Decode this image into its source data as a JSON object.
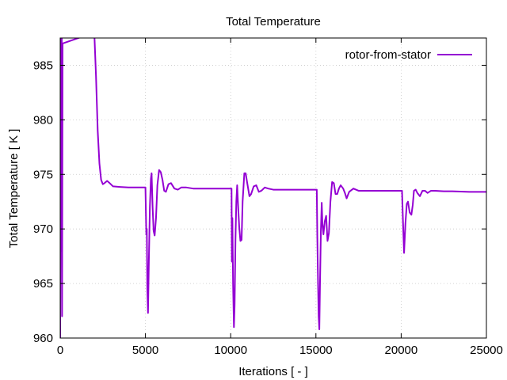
{
  "chart_data": {
    "type": "line",
    "title": "Total Temperature",
    "xlabel": "Iterations [ - ]",
    "ylabel": "Total Temperature [ K ]",
    "xlim": [
      0,
      25000
    ],
    "ylim": [
      960,
      987.5
    ],
    "xticks": [
      0,
      5000,
      10000,
      15000,
      20000,
      25000
    ],
    "yticks": [
      960,
      965,
      970,
      975,
      980,
      985
    ],
    "grid": true,
    "legend_position": "top-right",
    "series": [
      {
        "name": "rotor-from-stator",
        "color": "#9400d3",
        "points": [
          [
            0,
            960
          ],
          [
            40,
            988
          ],
          [
            60,
            968
          ],
          [
            90,
            988
          ],
          [
            110,
            962
          ],
          [
            140,
            987
          ],
          [
            2000,
            988
          ],
          [
            2100,
            984
          ],
          [
            2200,
            979
          ],
          [
            2300,
            976
          ],
          [
            2400,
            974.5
          ],
          [
            2500,
            974.1
          ],
          [
            2600,
            974.2
          ],
          [
            2750,
            974.4
          ],
          [
            2900,
            974.2
          ],
          [
            3100,
            973.9
          ],
          [
            3500,
            973.85
          ],
          [
            4000,
            973.8
          ],
          [
            4500,
            973.8
          ],
          [
            5000,
            973.8
          ],
          [
            5050,
            969.5
          ],
          [
            5080,
            970
          ],
          [
            5110,
            964.5
          ],
          [
            5150,
            962.3
          ],
          [
            5200,
            967
          ],
          [
            5260,
            972
          ],
          [
            5320,
            974.6
          ],
          [
            5360,
            975.1
          ],
          [
            5420,
            972
          ],
          [
            5480,
            969.8
          ],
          [
            5540,
            969.4
          ],
          [
            5620,
            971
          ],
          [
            5700,
            974
          ],
          [
            5800,
            975.4
          ],
          [
            5900,
            975.2
          ],
          [
            6000,
            974.5
          ],
          [
            6100,
            973.5
          ],
          [
            6200,
            973.4
          ],
          [
            6350,
            974.1
          ],
          [
            6500,
            974.2
          ],
          [
            6700,
            973.7
          ],
          [
            6900,
            973.6
          ],
          [
            7100,
            973.8
          ],
          [
            7400,
            973.8
          ],
          [
            7800,
            973.7
          ],
          [
            8500,
            973.7
          ],
          [
            9500,
            973.7
          ],
          [
            10050,
            973.7
          ],
          [
            10070,
            967
          ],
          [
            10100,
            971
          ],
          [
            10140,
            965
          ],
          [
            10190,
            961
          ],
          [
            10230,
            963
          ],
          [
            10280,
            969
          ],
          [
            10330,
            972.5
          ],
          [
            10380,
            974
          ],
          [
            10430,
            972.3
          ],
          [
            10500,
            970.2
          ],
          [
            10570,
            968.9
          ],
          [
            10640,
            969
          ],
          [
            10700,
            972.5
          ],
          [
            10800,
            975.1
          ],
          [
            10880,
            975.1
          ],
          [
            10950,
            974.4
          ],
          [
            11100,
            973
          ],
          [
            11200,
            973.2
          ],
          [
            11350,
            973.9
          ],
          [
            11500,
            974
          ],
          [
            11650,
            973.4
          ],
          [
            11800,
            973.5
          ],
          [
            12000,
            973.8
          ],
          [
            12200,
            973.7
          ],
          [
            12500,
            973.6
          ],
          [
            13000,
            973.6
          ],
          [
            14000,
            973.6
          ],
          [
            15050,
            973.6
          ],
          [
            15080,
            969.5
          ],
          [
            15120,
            965.5
          ],
          [
            15160,
            962
          ],
          [
            15200,
            960.8
          ],
          [
            15240,
            965
          ],
          [
            15290,
            969.7
          ],
          [
            15340,
            972.4
          ],
          [
            15380,
            970.5
          ],
          [
            15440,
            969.5
          ],
          [
            15520,
            970.7
          ],
          [
            15600,
            971.2
          ],
          [
            15680,
            968.9
          ],
          [
            15760,
            969.6
          ],
          [
            15850,
            972.5
          ],
          [
            15950,
            974.3
          ],
          [
            16050,
            974.2
          ],
          [
            16150,
            973.2
          ],
          [
            16250,
            973.2
          ],
          [
            16350,
            973.7
          ],
          [
            16450,
            974
          ],
          [
            16600,
            973.7
          ],
          [
            16700,
            973.3
          ],
          [
            16800,
            972.8
          ],
          [
            16950,
            973.4
          ],
          [
            17200,
            973.7
          ],
          [
            17500,
            973.5
          ],
          [
            18000,
            973.5
          ],
          [
            19000,
            973.5
          ],
          [
            20050,
            973.5
          ],
          [
            20100,
            971
          ],
          [
            20170,
            967.8
          ],
          [
            20250,
            970.5
          ],
          [
            20330,
            972.3
          ],
          [
            20400,
            972.5
          ],
          [
            20500,
            971.5
          ],
          [
            20600,
            971.3
          ],
          [
            20680,
            972.2
          ],
          [
            20750,
            973.5
          ],
          [
            20850,
            973.6
          ],
          [
            20950,
            973.3
          ],
          [
            21100,
            973
          ],
          [
            21250,
            973.5
          ],
          [
            21400,
            973.5
          ],
          [
            21550,
            973.3
          ],
          [
            21750,
            973.5
          ],
          [
            22000,
            973.5
          ],
          [
            22500,
            973.45
          ],
          [
            23000,
            973.45
          ],
          [
            24000,
            973.4
          ],
          [
            25000,
            973.4
          ]
        ]
      }
    ]
  }
}
